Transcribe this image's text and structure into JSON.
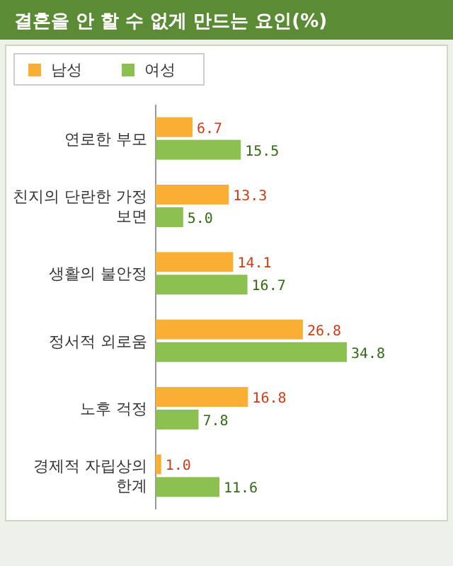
{
  "chart_data": {
    "type": "bar",
    "orientation": "horizontal",
    "title": "결혼을 안 할 수 없게 만드는 요인(%)",
    "categories": [
      "연로한 부모",
      "친지의 단란한 가정 보면",
      "생활의 불안정",
      "정서적 외로움",
      "노후 걱정",
      "경제적 자립상의 한계"
    ],
    "series": [
      {
        "name": "남성",
        "color": "#f9ae34",
        "values": [
          6.7,
          13.3,
          14.1,
          26.8,
          16.8,
          1.0
        ],
        "value_labels": [
          "6.7",
          "13.3",
          "14.1",
          "26.8",
          "16.8",
          "1.0"
        ]
      },
      {
        "name": "여성",
        "color": "#8cc152",
        "values": [
          15.5,
          5.0,
          16.7,
          34.8,
          7.8,
          11.6
        ],
        "value_labels": [
          "15.5",
          "5.0",
          "16.7",
          "34.8",
          "7.8",
          "11.6"
        ]
      }
    ],
    "legend": "top left"
  }
}
